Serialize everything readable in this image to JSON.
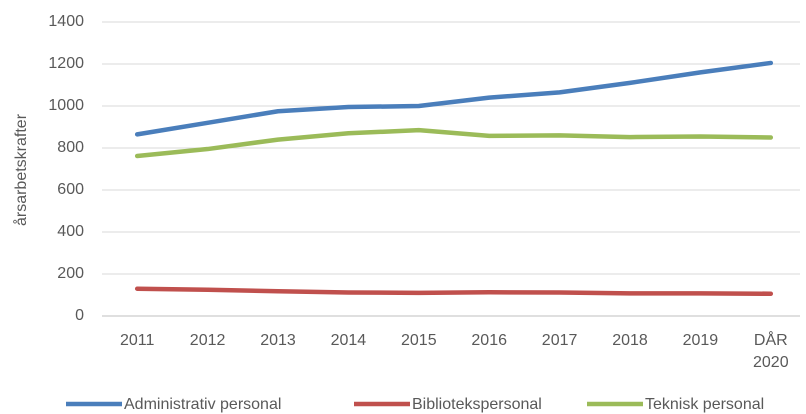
{
  "chart_data": {
    "type": "line",
    "y_label": "årsarbetskrafter",
    "categories": [
      "2011",
      "2012",
      "2013",
      "2014",
      "2015",
      "2016",
      "2017",
      "2018",
      "2019",
      "DÅR 2020"
    ],
    "series": [
      {
        "name": "Administrativ personal",
        "color": "#4a7ebb",
        "values": [
          865,
          920,
          975,
          995,
          1000,
          1040,
          1065,
          1110,
          1160,
          1205
        ]
      },
      {
        "name": "Bibliotekspersonal",
        "color": "#c0504d",
        "values": [
          130,
          125,
          118,
          112,
          110,
          113,
          112,
          108,
          108,
          106
        ]
      },
      {
        "name": "Teknisk personal",
        "color": "#9bbb59",
        "values": [
          762,
          795,
          840,
          870,
          885,
          858,
          860,
          852,
          855,
          850
        ]
      }
    ],
    "ylim": [
      0,
      1400
    ],
    "yticks": [
      0,
      200,
      400,
      600,
      800,
      1000,
      1200,
      1400
    ],
    "grid": true,
    "legend": "bottom"
  }
}
